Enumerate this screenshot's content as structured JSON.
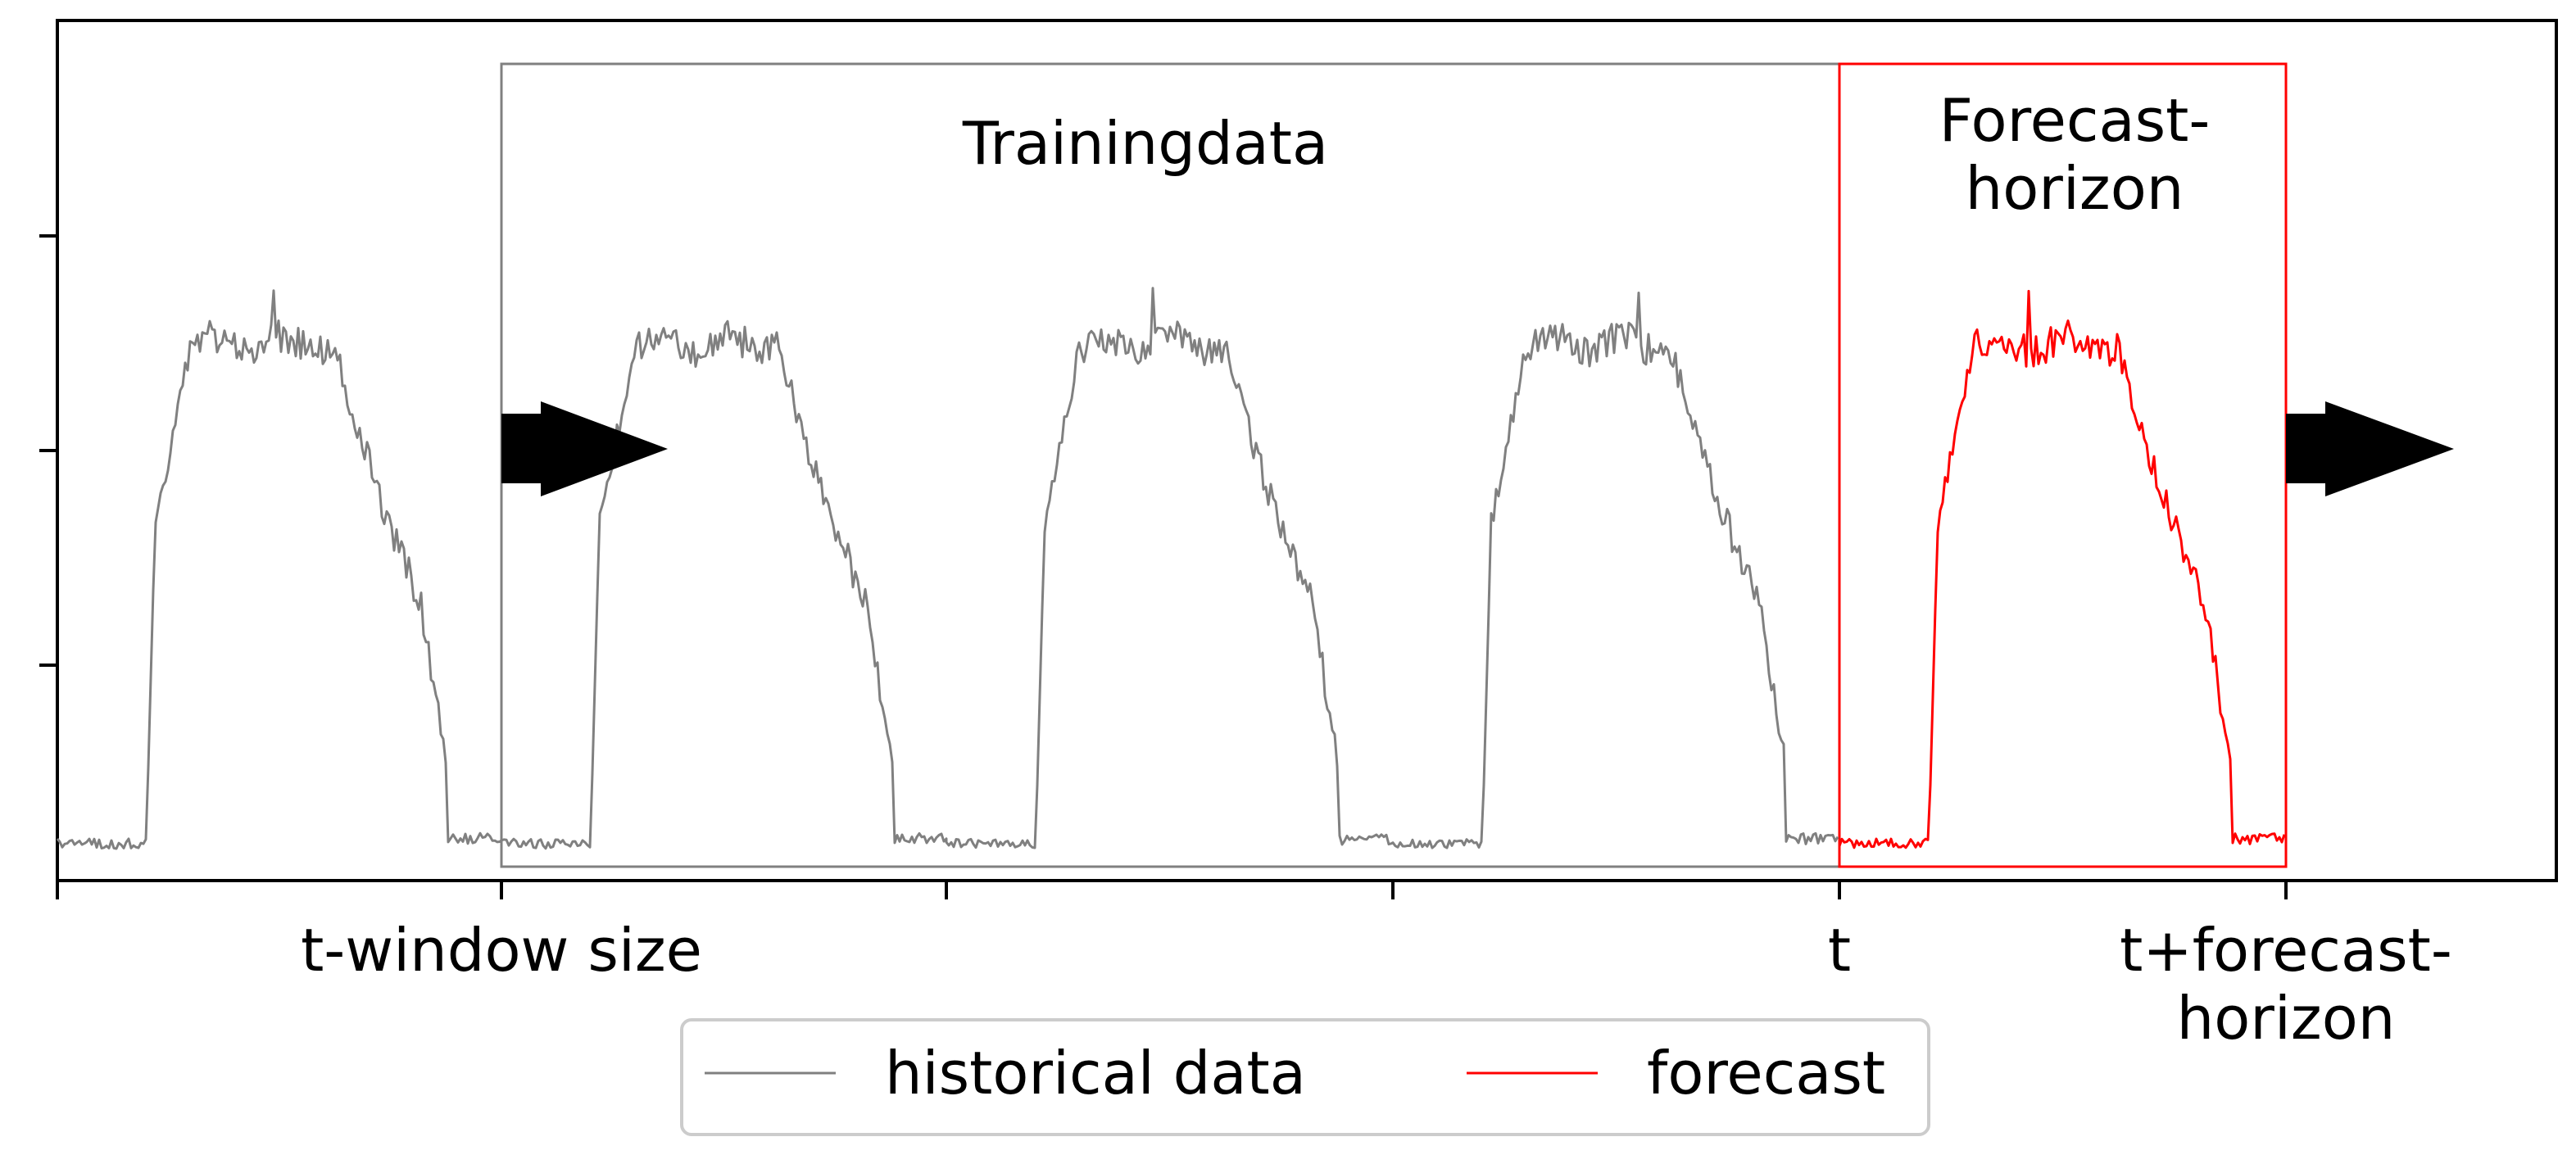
{
  "chart_data": {
    "type": "line",
    "title": "",
    "xlabel": "",
    "ylabel": "",
    "x_tick_labels": [
      {
        "key": "t_window",
        "label": "t-window size"
      },
      {
        "key": "t",
        "label": "t"
      },
      {
        "key": "t_horizon",
        "label": "t+forecast-",
        "label2": "horizon"
      }
    ],
    "annotations": {
      "training": "Trainingdata",
      "forecast_line1": "Forecast-",
      "forecast_line2": "horizon"
    },
    "legend": {
      "placement": "bottom-center",
      "entries": [
        {
          "name": "historical data",
          "color": "#808080"
        },
        {
          "name": "forecast",
          "color": "#ff0000"
        }
      ]
    },
    "series": [
      {
        "name": "historical data",
        "color": "#808080"
      },
      {
        "name": "forecast",
        "color": "#ff0000"
      }
    ],
    "grid": false
  }
}
